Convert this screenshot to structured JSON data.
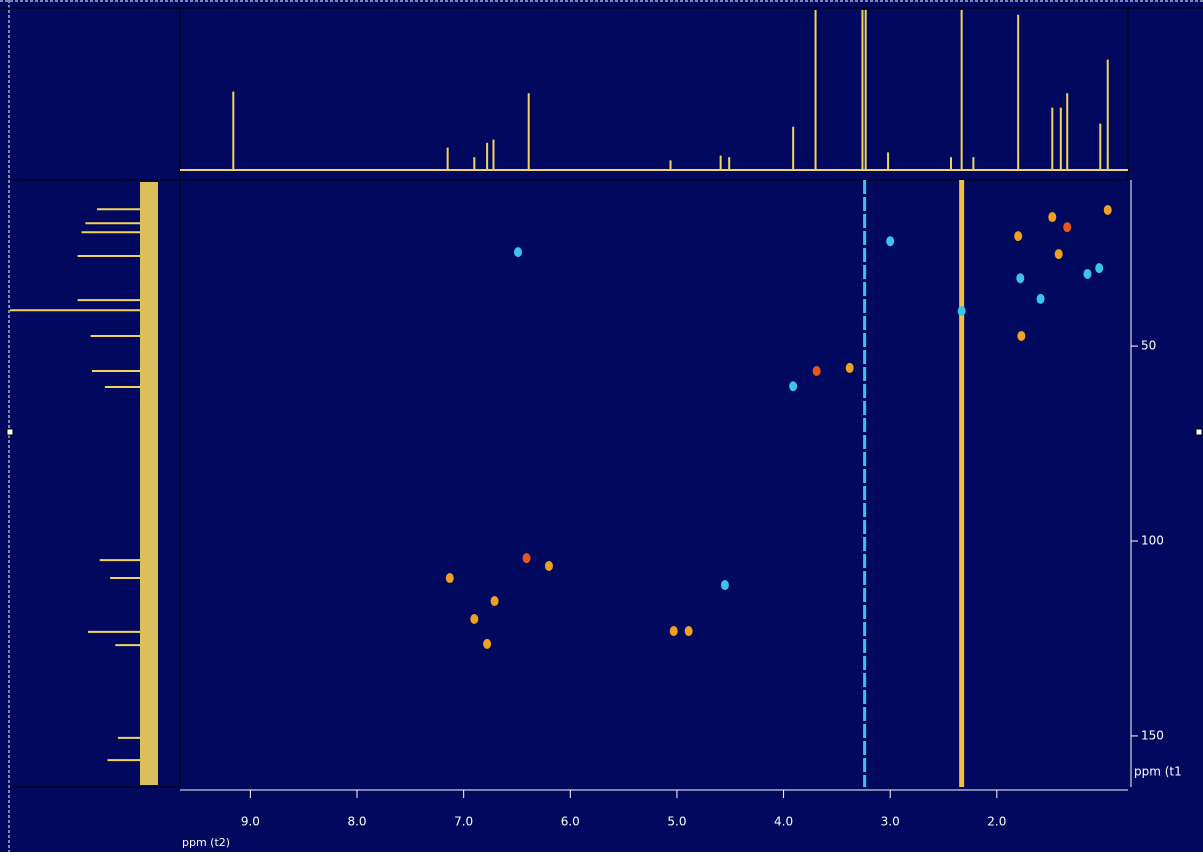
{
  "chart_data": {
    "type": "hsqc",
    "x_label": "ppm (t2)",
    "y_label": "ppm (t1",
    "xlim": [
      9.66,
      0.77
    ],
    "ylim": [
      7.4,
      163.1
    ],
    "xticks": [
      {
        "value": 9,
        "label": "9.0"
      },
      {
        "value": 8,
        "label": "8.0"
      },
      {
        "value": 7,
        "label": "7.0"
      },
      {
        "value": 6,
        "label": "6.0"
      },
      {
        "value": 5,
        "label": "5.0"
      },
      {
        "value": 4,
        "label": "4.0"
      },
      {
        "value": 3,
        "label": "3.0"
      },
      {
        "value": 2,
        "label": "2.0"
      }
    ],
    "yticks": [
      50,
      100,
      150
    ],
    "peaks": [
      {
        "x": 6.49,
        "y": 25.9,
        "color": "#3cc4e6"
      },
      {
        "x": 3.0,
        "y": 23.1,
        "color": "#3cc4e6"
      },
      {
        "x": 1.8,
        "y": 21.8,
        "color": "#f0a020"
      },
      {
        "x": 1.48,
        "y": 16.9,
        "color": "#f0a020"
      },
      {
        "x": 1.34,
        "y": 19.5,
        "color": "#e8561c"
      },
      {
        "x": 0.96,
        "y": 15.1,
        "color": "#f0a020"
      },
      {
        "x": 1.42,
        "y": 26.4,
        "color": "#f0a020"
      },
      {
        "x": 1.78,
        "y": 32.6,
        "color": "#3cc4e6"
      },
      {
        "x": 1.59,
        "y": 37.9,
        "color": "#3cc4e6"
      },
      {
        "x": 1.15,
        "y": 31.5,
        "color": "#3cc4e6"
      },
      {
        "x": 1.04,
        "y": 30,
        "color": "#3cc4e6"
      },
      {
        "x": 2.33,
        "y": 41,
        "color": "#3cc4e6"
      },
      {
        "x": 1.77,
        "y": 47.4,
        "color": "#f0a020"
      },
      {
        "x": 3.69,
        "y": 56.4,
        "color": "#e8561c"
      },
      {
        "x": 3.91,
        "y": 60.3,
        "color": "#3cc4e6"
      },
      {
        "x": 3.38,
        "y": 55.6,
        "color": "#f0a020"
      },
      {
        "x": 6.41,
        "y": 104.4,
        "color": "#e8561c"
      },
      {
        "x": 6.2,
        "y": 106.4,
        "color": "#f0a020"
      },
      {
        "x": 7.13,
        "y": 109.5,
        "color": "#f0a020"
      },
      {
        "x": 4.55,
        "y": 111.3,
        "color": "#3cc4e6"
      },
      {
        "x": 6.71,
        "y": 115.4,
        "color": "#f0a020"
      },
      {
        "x": 6.9,
        "y": 120,
        "color": "#f0a020"
      },
      {
        "x": 5.03,
        "y": 123.1,
        "color": "#f0a020"
      },
      {
        "x": 4.89,
        "y": 123.1,
        "color": "#f0a020"
      },
      {
        "x": 6.78,
        "y": 126.4,
        "color": "#f0a020"
      }
    ],
    "solvent_lines": [
      {
        "x": 3.24,
        "color": "#3cc4e6"
      },
      {
        "x": 2.33,
        "color": "#f0c040"
      }
    ],
    "top_trace": {
      "color": "#f2d45a",
      "peaks": [
        {
          "x": 9.16,
          "h": 0.49
        },
        {
          "x": 7.15,
          "h": 0.14
        },
        {
          "x": 6.9,
          "h": 0.08
        },
        {
          "x": 6.78,
          "h": 0.17
        },
        {
          "x": 6.72,
          "h": 0.19
        },
        {
          "x": 6.39,
          "h": 0.48
        },
        {
          "x": 5.06,
          "h": 0.06
        },
        {
          "x": 4.59,
          "h": 0.09
        },
        {
          "x": 4.51,
          "h": 0.08
        },
        {
          "x": 3.91,
          "h": 0.27
        },
        {
          "x": 3.7,
          "h": 1.0
        },
        {
          "x": 3.26,
          "h": 1.0
        },
        {
          "x": 3.23,
          "h": 1.0
        },
        {
          "x": 3.02,
          "h": 0.11
        },
        {
          "x": 2.43,
          "h": 0.08
        },
        {
          "x": 2.33,
          "h": 1.0
        },
        {
          "x": 2.22,
          "h": 0.08
        },
        {
          "x": 1.8,
          "h": 0.97
        },
        {
          "x": 1.48,
          "h": 0.39
        },
        {
          "x": 1.4,
          "h": 0.39
        },
        {
          "x": 1.34,
          "h": 0.48
        },
        {
          "x": 1.03,
          "h": 0.29
        },
        {
          "x": 0.96,
          "h": 0.69
        }
      ]
    },
    "left_trace": {
      "color": "#f2d45a",
      "peaks": [
        {
          "y": 14.9,
          "h": 0.33
        },
        {
          "y": 18.5,
          "h": 0.42
        },
        {
          "y": 20.8,
          "h": 0.45
        },
        {
          "y": 26.9,
          "h": 0.48
        },
        {
          "y": 38.2,
          "h": 0.48
        },
        {
          "y": 40.8,
          "h": 1.0
        },
        {
          "y": 47.4,
          "h": 0.38
        },
        {
          "y": 56.4,
          "h": 0.37
        },
        {
          "y": 60.5,
          "h": 0.27
        },
        {
          "y": 104.9,
          "h": 0.31
        },
        {
          "y": 109.5,
          "h": 0.23
        },
        {
          "y": 123.3,
          "h": 0.4
        },
        {
          "y": 126.7,
          "h": 0.19
        },
        {
          "y": 150.5,
          "h": 0.17
        },
        {
          "y": 156.2,
          "h": 0.25
        }
      ]
    }
  }
}
